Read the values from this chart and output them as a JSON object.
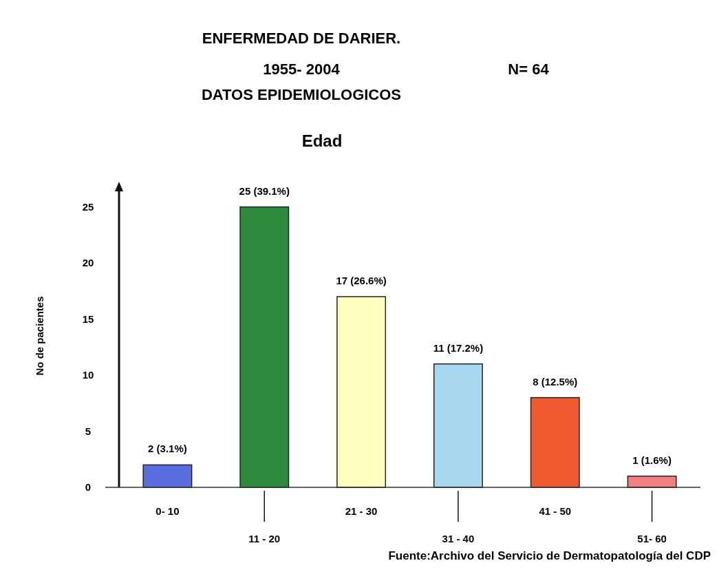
{
  "chart_data": {
    "type": "bar",
    "title": "ENFERMEDAD DE DARIER.",
    "subtitle": "1955- 2004",
    "annotations": [
      "DATOS EPIDEMIOLOGICOS",
      "N= 64",
      "Edad",
      "Fuente:Archivo del Servicio de  Dermatopatología del CDP"
    ],
    "ylabel": "No de pacientes",
    "categories": [
      "0- 10",
      "11 - 20",
      "21 - 30",
      "31 - 40",
      "41 - 50",
      "51- 60"
    ],
    "values": [
      2,
      25,
      17,
      11,
      8,
      1
    ],
    "colors": [
      "#5a6ee0",
      "#2e8b3e",
      "#ffffc0",
      "#a8d8f0",
      "#f05a30",
      "#f08080"
    ],
    "value_labels": [
      "2 (3.1%)",
      "25 (39.1%)",
      "17 (26.6%)",
      "11  (17.2%)",
      "8 (12.5%)",
      "1 (1.6%)"
    ],
    "ylim": [
      0,
      27
    ],
    "yticks": [
      0,
      5,
      10,
      15,
      20,
      25
    ]
  }
}
